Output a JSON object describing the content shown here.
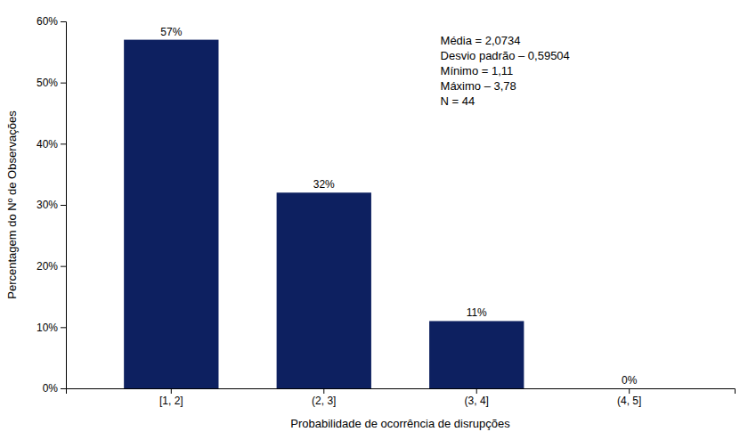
{
  "chart_data": {
    "type": "bar",
    "categories": [
      "[1, 2]",
      "(2, 3]",
      "(3, 4]",
      "(4, 5]"
    ],
    "values": [
      57,
      32,
      11,
      0
    ],
    "value_labels": [
      "57%",
      "32%",
      "11%",
      "0%"
    ],
    "data_labels": true,
    "color": "#0d2060",
    "x_label": "Probabilidade de ocorrência de disrupções",
    "y_label": "Percentagem do Nº de Observações",
    "ylim": [
      0,
      60
    ],
    "yticks": [
      {
        "value": 0,
        "label": "0%"
      },
      {
        "value": 10,
        "label": "10%"
      },
      {
        "value": 20,
        "label": "20%"
      },
      {
        "value": 30,
        "label": "30%"
      },
      {
        "value": 40,
        "label": "40%"
      },
      {
        "value": 50,
        "label": "50%"
      },
      {
        "value": 60,
        "label": "60%"
      }
    ],
    "grid": false,
    "annotations": [
      "Média = 2,0734",
      "Desvio padrão – 0,59504",
      "Mínimo = 1,11",
      "Máximo – 3,78",
      "N = 44"
    ]
  }
}
